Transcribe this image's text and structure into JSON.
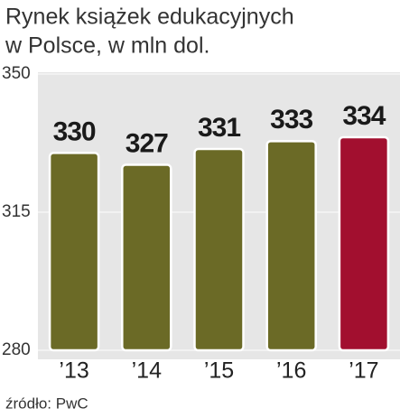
{
  "chart_data": {
    "type": "bar",
    "title": [
      "Rynek książek edukacyjnych",
      "w Polsce, w mln dol."
    ],
    "categories": [
      "’13",
      "’14",
      "’15",
      "’16",
      "’17"
    ],
    "values": [
      330,
      327,
      331,
      333,
      334
    ],
    "colors": [
      "#6b6a26",
      "#6b6a26",
      "#6b6a26",
      "#6b6a26",
      "#a20f2f"
    ],
    "ylim": [
      280,
      350
    ],
    "yticks": [
      280,
      315,
      350
    ],
    "grid": true,
    "source": "źródło: PwC"
  }
}
